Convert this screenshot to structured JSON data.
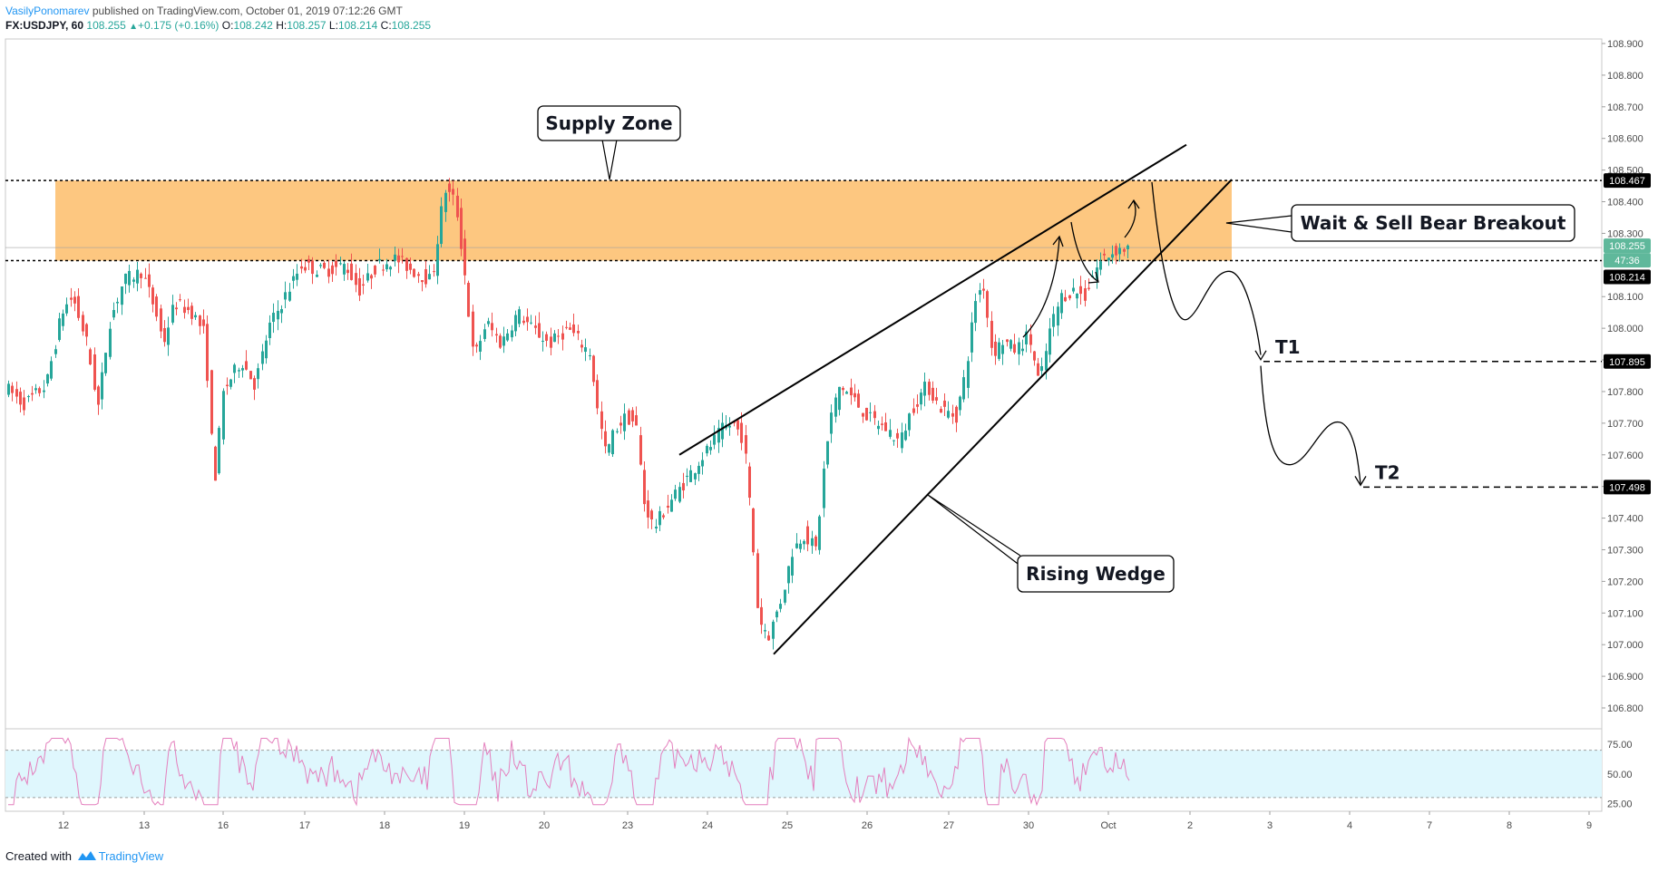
{
  "header": {
    "author": "VasilyPonomarev",
    "meta": "published on TradingView.com, October 01, 2019 07:12:26 GMT"
  },
  "ohlc": {
    "symbol": "FX:USDJPY, 60",
    "last": "108.255",
    "change": "+0.175 (+0.16%)",
    "o_label": "O:",
    "o": "108.242",
    "h_label": "H:",
    "h": "108.257",
    "l_label": "L:",
    "l": "108.214",
    "c_label": "C:",
    "c": "108.255"
  },
  "footer": {
    "created": "Created with",
    "brand": "TradingView"
  },
  "colors": {
    "up": "#26a69a",
    "down": "#ef5350",
    "zone": "#fdc479",
    "rsi_line": "#e47fbd",
    "rsi_band": "#dff7fd"
  },
  "chart_data": [
    {
      "type": "candlestick",
      "title": "",
      "yaxis": {
        "side": "right",
        "range": [
          106.8,
          108.9
        ],
        "ticks": [
          "108.900",
          "108.800",
          "108.700",
          "108.600",
          "108.500",
          "108.400",
          "108.300",
          "108.100",
          "108.000",
          "107.900",
          "107.800",
          "107.700",
          "107.600",
          "107.500",
          "107.400",
          "107.300",
          "107.200",
          "107.100",
          "107.000",
          "106.900",
          "106.800"
        ]
      },
      "xaxis": {
        "ticks": [
          "12",
          "13",
          "16",
          "17",
          "18",
          "19",
          "20",
          "23",
          "24",
          "25",
          "26",
          "27",
          "30",
          "Oct",
          "2",
          "3",
          "4",
          "7",
          "8",
          "9"
        ]
      },
      "grid": false,
      "price_labels": {
        "supply_top": "108.467",
        "last": "108.255",
        "countdown": "47:36",
        "supply_bottom": "108.214",
        "t1": "107.895",
        "t2": "107.498"
      },
      "supply_zone": {
        "high": 108.467,
        "low": 108.214,
        "from": "12",
        "to": "2"
      },
      "annotations": {
        "supply": "Supply Zone",
        "sell": "Wait & Sell Bear Breakout",
        "wedge": "Rising Wedge",
        "t1": "T1",
        "t2": "T2"
      },
      "wedge_lines": {
        "upper": [
          {
            "x": "23",
            "y": 107.6
          },
          {
            "x": "2",
            "y": 108.58
          }
        ],
        "lower": [
          {
            "x": "24",
            "y": 106.97
          },
          {
            "x": "2",
            "y": 108.47
          }
        ]
      },
      "projection": [
        {
          "y": 108.29
        },
        {
          "y": 108.03
        },
        {
          "y": 108.18
        },
        {
          "y": 107.91
        },
        {
          "y": 107.57
        },
        {
          "y": 107.7
        },
        {
          "y": 107.5
        }
      ]
    },
    {
      "type": "line",
      "title": "",
      "yaxis": {
        "range": [
          20,
          85
        ],
        "ticks": [
          "75.00",
          "50.00",
          "25.00"
        ]
      },
      "bands": [
        30,
        70
      ]
    }
  ]
}
